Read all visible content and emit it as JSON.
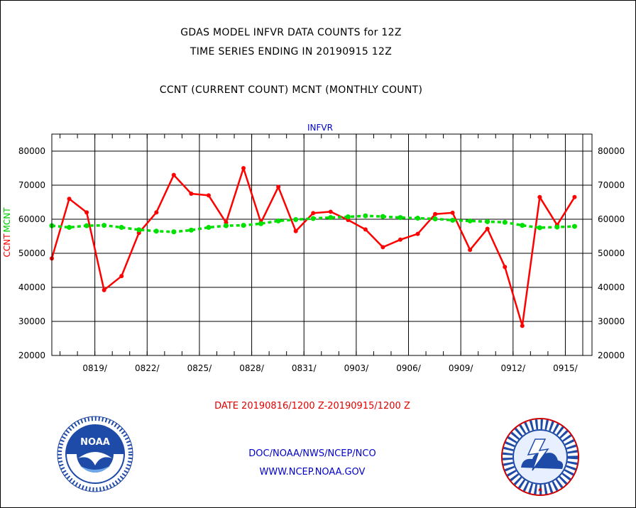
{
  "header": {
    "line1": "GDAS MODEL INFVR DATA COUNTS for 12Z",
    "line2": "TIME SERIES ENDING IN 20190915 12Z",
    "line3": "CCNT (CURRENT COUNT) MCNT (MONTHLY COUNT)"
  },
  "footer": {
    "date_range": "DATE 20190816/1200 Z-20190915/1200 Z",
    "agency": "DOC/NOAA/NWS/NCEP/NCO",
    "url": "WWW.NCEP.NOAA.GOV"
  },
  "logos": {
    "left": {
      "icon": "noaa-logo",
      "text": "NOAA"
    },
    "right": {
      "icon": "national-weather-service-logo"
    }
  },
  "chart_data": {
    "type": "line",
    "title": "INFVR",
    "ylabel_left": [
      "CCNT",
      "MCNT"
    ],
    "ylim": [
      20000,
      85000
    ],
    "yticks": [
      20000,
      30000,
      40000,
      50000,
      60000,
      70000,
      80000
    ],
    "ytick_labels": [
      "20000",
      "30000",
      "40000",
      "50000",
      "60000",
      "70000",
      "80000"
    ],
    "xticks": [
      "0819/",
      "0822/",
      "0825/",
      "0828/",
      "0831/",
      "0903/",
      "0906/",
      "0909/",
      "0912/",
      "0915/"
    ],
    "x_start": "2019-08-16",
    "colors": {
      "ccnt": "#ff0000",
      "mcnt": "#00e000",
      "title": "#0000cc",
      "frame": "#000000"
    },
    "grid": true,
    "series": [
      {
        "name": "CCNT",
        "color": "#ff0000",
        "values": [
          48500,
          66000,
          62000,
          39200,
          43300,
          56000,
          62000,
          73000,
          67500,
          67000,
          59000,
          75000,
          59000,
          69500,
          56500,
          61800,
          62200,
          59800,
          57000,
          51800,
          54000,
          55700,
          61500,
          61900,
          51000,
          57200,
          46000,
          28700,
          66500,
          58300,
          66500
        ]
      },
      {
        "name": "MCNT",
        "color": "#00e000",
        "values": [
          58100,
          57600,
          58100,
          58200,
          57600,
          56900,
          56500,
          56300,
          56800,
          57600,
          58100,
          58200,
          58700,
          59500,
          59900,
          60200,
          60500,
          60700,
          61000,
          60800,
          60500,
          60300,
          60100,
          59700,
          59500,
          59300,
          59100,
          58200,
          57500,
          57700,
          57900
        ]
      }
    ]
  }
}
